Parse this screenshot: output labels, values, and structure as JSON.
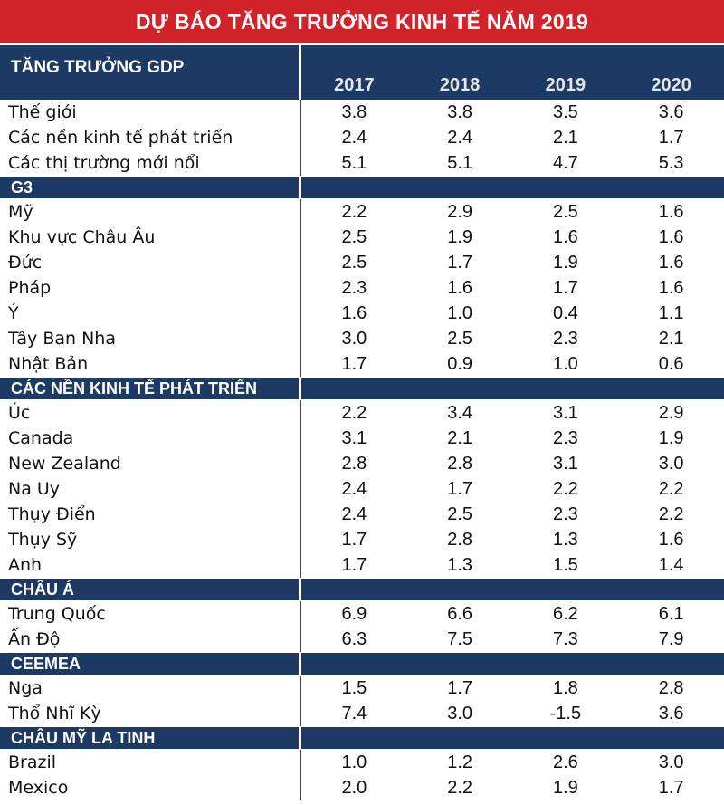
{
  "title": "DỰ BÁO TĂNG TRƯỞNG KINH TẾ NĂM 2019",
  "header": {
    "label": "TĂNG TRƯỞNG GDP",
    "years": [
      "2017",
      "2018",
      "2019",
      "2020"
    ]
  },
  "sections": [
    {
      "rows": [
        {
          "label": "Thế giới",
          "values": [
            "3.8",
            "3.8",
            "3.5",
            "3.6"
          ]
        },
        {
          "label": "Các nền kinh tế phát triển",
          "values": [
            "2.4",
            "2.4",
            "2.1",
            "1.7"
          ]
        },
        {
          "label": "Các thị trường mới nổi",
          "values": [
            "5.1",
            "5.1",
            "4.7",
            "5.3"
          ]
        }
      ]
    },
    {
      "name": "G3",
      "rows": [
        {
          "label": "Mỹ",
          "values": [
            "2.2",
            "2.9",
            "2.5",
            "1.6"
          ]
        },
        {
          "label": "Khu vực Châu Âu",
          "values": [
            "2.5",
            "1.9",
            "1.6",
            "1.6"
          ]
        },
        {
          "label": "Đức",
          "values": [
            "2.5",
            "1.7",
            "1.9",
            "1.6"
          ]
        },
        {
          "label": "Pháp",
          "values": [
            "2.3",
            "1.6",
            "1.7",
            "1.6"
          ]
        },
        {
          "label": "Ý",
          "values": [
            "1.6",
            "1.0",
            "0.4",
            "1.1"
          ]
        },
        {
          "label": "Tây Ban Nha",
          "values": [
            "3.0",
            "2.5",
            "2.3",
            "2.1"
          ]
        },
        {
          "label": "Nhật Bản",
          "values": [
            "1.7",
            "0.9",
            "1.0",
            "0.6"
          ]
        }
      ]
    },
    {
      "name": "CÁC NỀN KINH TẾ PHÁT TRIỂN",
      "rows": [
        {
          "label": "Úc",
          "values": [
            "2.2",
            "3.4",
            "3.1",
            "2.9"
          ]
        },
        {
          "label": "Canada",
          "values": [
            "3.1",
            "2.1",
            "2.3",
            "1.9"
          ]
        },
        {
          "label": "New Zealand",
          "values": [
            "2.8",
            "2.8",
            "3.1",
            "3.0"
          ]
        },
        {
          "label": "Na Uy",
          "values": [
            "2.4",
            "1.7",
            "2.2",
            "2.2"
          ]
        },
        {
          "label": "Thụy Điển",
          "values": [
            "2.4",
            "2.5",
            "2.3",
            "2.2"
          ]
        },
        {
          "label": "Thụy Sỹ",
          "values": [
            "1.7",
            "2.8",
            "1.3",
            "1.6"
          ]
        },
        {
          "label": "Anh",
          "values": [
            "1.7",
            "1.3",
            "1.5",
            "1.4"
          ]
        }
      ]
    },
    {
      "name": "CHÂU Á",
      "rows": [
        {
          "label": "Trung Quốc",
          "values": [
            "6.9",
            "6.6",
            "6.2",
            "6.1"
          ]
        },
        {
          "label": "Ấn Độ",
          "values": [
            "6.3",
            "7.5",
            "7.3",
            "7.9"
          ]
        }
      ]
    },
    {
      "name": "CEEMEA",
      "rows": [
        {
          "label": "Nga",
          "values": [
            "1.5",
            "1.7",
            "1.8",
            "2.8"
          ]
        },
        {
          "label": "Thổ Nhĩ Kỳ",
          "values": [
            "7.4",
            "3.0",
            "-1.5",
            "3.6"
          ]
        }
      ]
    },
    {
      "name": "CHÂU MỸ LA TINH",
      "rows": [
        {
          "label": "Brazil",
          "values": [
            "1.0",
            "1.2",
            "2.6",
            "3.0"
          ]
        },
        {
          "label": "Mexico",
          "values": [
            "2.0",
            "2.2",
            "1.9",
            "1.7"
          ]
        }
      ]
    }
  ]
}
